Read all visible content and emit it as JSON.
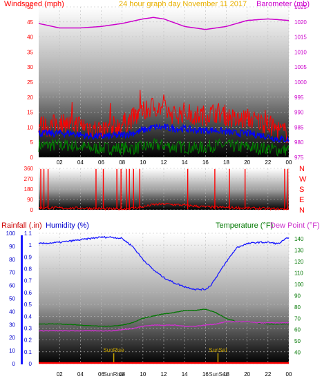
{
  "title": "24 hour graph day   November 11 2017",
  "colors": {
    "windspeed": "#ff0000",
    "gust_avg": "#0000ff",
    "wind_low": "#008000",
    "barometer": "#cc00cc",
    "direction": "#ff0000",
    "rainfall": "#ff0000",
    "humidity": "#1a1aff",
    "temperature": "#007700",
    "dewpoint": "#cc33cc",
    "sun_marker": "#c8a400",
    "title": "#e8b000"
  },
  "chart_data": [
    {
      "type": "line",
      "title": "24 hour graph day   November 11 2017",
      "ylabel": "Windspeed (mph)",
      "y2label": "Barometer (mb)",
      "ylim": [
        0,
        50
      ],
      "y2lim": [
        975,
        1025
      ],
      "yticks": [
        "0",
        "5",
        "10",
        "15",
        "20",
        "25",
        "30",
        "35",
        "40",
        "45",
        "50"
      ],
      "y2ticks": [
        "975",
        "980",
        "985",
        "990",
        "995",
        "1000",
        "1005",
        "1010",
        "1015",
        "1020",
        "1025"
      ],
      "xticks": [
        "02",
        "04",
        "06",
        "08",
        "10",
        "12",
        "14",
        "16",
        "18",
        "20",
        "22",
        "00"
      ],
      "series": [
        {
          "key": "wind_gust",
          "x": [
            0,
            1,
            2,
            3,
            4,
            5,
            6,
            7,
            8,
            9,
            10,
            11,
            12,
            13,
            14,
            15,
            16,
            17,
            18,
            19,
            20,
            21,
            22,
            23,
            24
          ],
          "values": [
            11,
            10,
            12,
            11,
            11,
            10,
            9,
            10,
            11,
            13,
            15,
            17,
            16,
            14,
            15,
            14,
            14,
            15,
            14,
            12,
            13,
            12,
            11,
            9,
            8
          ]
        },
        {
          "key": "wind_avg",
          "x": [
            0,
            1,
            2,
            3,
            4,
            5,
            6,
            7,
            8,
            9,
            10,
            11,
            12,
            13,
            14,
            15,
            16,
            17,
            18,
            19,
            20,
            21,
            22,
            23,
            24
          ],
          "values": [
            8,
            8,
            8,
            8,
            7.5,
            7,
            7,
            7,
            7.5,
            8,
            9,
            10,
            10,
            9.5,
            9.5,
            9,
            9,
            9,
            8.5,
            8,
            8,
            7.5,
            7,
            6,
            6
          ]
        },
        {
          "key": "wind_low",
          "x": [
            0,
            1,
            2,
            3,
            4,
            5,
            6,
            7,
            8,
            9,
            10,
            11,
            12,
            13,
            14,
            15,
            16,
            17,
            18,
            19,
            20,
            21,
            22,
            23,
            24
          ],
          "values": [
            4,
            4,
            4,
            4,
            3.5,
            3,
            3,
            3,
            3,
            3,
            3.5,
            4,
            4,
            3.5,
            3.5,
            3,
            3.5,
            4,
            4,
            3.5,
            3.5,
            3,
            3,
            2.5,
            2.5
          ]
        },
        {
          "key": "barometer",
          "x": [
            0,
            2,
            4,
            6,
            8,
            10,
            11,
            12,
            14,
            16,
            18,
            20,
            22,
            24
          ],
          "values": [
            1019.5,
            1018,
            1018,
            1018.5,
            1019.5,
            1021,
            1021.5,
            1021,
            1018.5,
            1017.5,
            1018.5,
            1020.5,
            1021,
            1020.5
          ]
        }
      ]
    },
    {
      "type": "line",
      "ylabel_letters": [
        "N",
        "W",
        "S",
        "E",
        "N"
      ],
      "ylim": [
        0,
        360
      ],
      "yticks": [
        "0",
        "90",
        "180",
        "270",
        "360"
      ],
      "series": [
        {
          "key": "wind_direction",
          "x": [
            0,
            2,
            4,
            6,
            8,
            10,
            11,
            12,
            14,
            16,
            18,
            20,
            22,
            24
          ],
          "values": [
            20,
            15,
            15,
            10,
            5,
            25,
            45,
            50,
            40,
            25,
            20,
            15,
            10,
            5
          ],
          "spikes_at_hours": [
            0.2,
            0.5,
            0.9,
            5.5,
            6.2,
            7.5,
            7.9,
            8.4,
            8.7,
            9.1,
            9.7,
            14.3,
            16.9,
            18.3,
            19.8,
            23.6,
            23.9
          ]
        }
      ]
    },
    {
      "type": "line",
      "ylabel": "Rainfall (.in)",
      "ylabel2": "Humidity (%)",
      "y2label": "Temperature (°F)",
      "y2label2": "Dew Point (°F)",
      "ylim_humidity": [
        0,
        100
      ],
      "ylim_rain": [
        0,
        1.1
      ],
      "ylim_temp": [
        30,
        145
      ],
      "yticks_humidity": [
        "0",
        "10",
        "20",
        "30",
        "40",
        "50",
        "60",
        "70",
        "80",
        "90",
        "100"
      ],
      "yticks_rain": [
        "0",
        "0.1",
        "0.2",
        "0.3",
        "0.4",
        "0.5",
        "0.6",
        "0.7",
        "0.8",
        "0.9",
        "1",
        "1.1"
      ],
      "yticks_temp": [
        "40",
        "50",
        "60",
        "70",
        "80",
        "90",
        "100",
        "110",
        "120",
        "130",
        "140"
      ],
      "xticks": [
        "02",
        "04",
        "06",
        "08",
        "10",
        "12",
        "14",
        "16",
        "18",
        "20",
        "22",
        "00"
      ],
      "markers": [
        "SunRise",
        "SunSet"
      ],
      "marker_hours": [
        7.2,
        17.2
      ],
      "series": [
        {
          "key": "humidity",
          "x": [
            0,
            2,
            4,
            6,
            7,
            8,
            9,
            10,
            11,
            12,
            13,
            14,
            15,
            16,
            16.5,
            17,
            18,
            19,
            20,
            21,
            22,
            23,
            24
          ],
          "values": [
            92,
            93,
            95,
            97,
            97,
            96,
            90,
            80,
            72,
            66,
            62,
            59,
            57,
            57,
            60,
            66,
            78,
            89,
            92,
            93,
            93,
            92,
            97
          ]
        },
        {
          "key": "temperature",
          "x": [
            0,
            2,
            4,
            6,
            7,
            8,
            9,
            10,
            11,
            12,
            13,
            14,
            15,
            16,
            17,
            18,
            19,
            20,
            21,
            22,
            23,
            24
          ],
          "values": [
            65,
            65,
            64,
            63,
            63,
            64,
            66,
            70,
            72,
            74,
            75,
            77,
            77,
            78,
            75,
            70,
            67,
            67,
            66,
            65,
            65,
            65
          ]
        },
        {
          "key": "dewpoint",
          "x": [
            0,
            2,
            4,
            6,
            7,
            8,
            9,
            10,
            11,
            12,
            13,
            14,
            15,
            16,
            17,
            18,
            19,
            20,
            21,
            22,
            23,
            24
          ],
          "values": [
            59,
            59,
            59,
            59,
            59,
            60,
            61,
            63,
            64,
            64,
            64,
            63,
            63,
            64,
            65,
            67,
            67,
            67,
            66,
            66,
            66,
            66
          ]
        },
        {
          "key": "rainfall",
          "x": [
            0,
            24
          ],
          "values": [
            0,
            0
          ]
        }
      ]
    }
  ]
}
